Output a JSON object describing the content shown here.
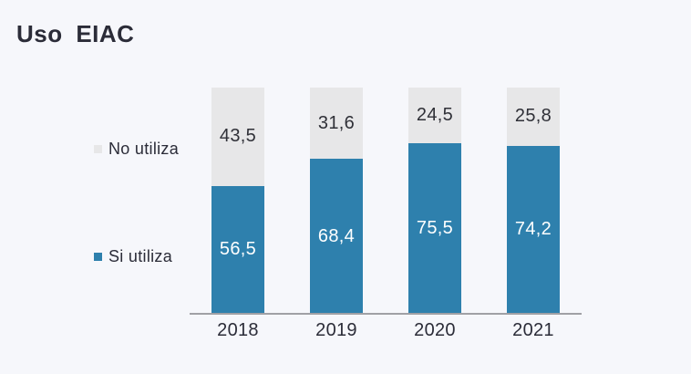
{
  "title": "Uso EIAC",
  "colors": {
    "background": "#f6f7fb",
    "blue": "#2e80ad",
    "gray": "#e7e7e8",
    "axis_line": "#a0a0a5",
    "text_dark": "#2b2c38",
    "label_on_gray": "#2f3037",
    "label_on_blue": "#ffffff"
  },
  "legend": {
    "items": [
      {
        "label": "No utiliza",
        "color": "#e7e7e8"
      },
      {
        "label": "Si utiliza",
        "color": "#2e80ad"
      }
    ]
  },
  "chart_data": {
    "type": "bar",
    "stacked": true,
    "title": "Uso EIAC",
    "categories": [
      "2018",
      "2019",
      "2020",
      "2021"
    ],
    "series": [
      {
        "name": "No utiliza",
        "key": "no-utiliza",
        "color": "#e7e7e8",
        "label_color": "#2f3037",
        "values": [
          43.5,
          31.6,
          24.5,
          25.8
        ],
        "labels": [
          "43,5",
          "31,6",
          "24,5",
          "25,8"
        ]
      },
      {
        "name": "Si utiliza",
        "key": "si-utiliza",
        "color": "#2e80ad",
        "label_color": "#ffffff",
        "values": [
          56.5,
          68.4,
          75.5,
          74.2
        ],
        "labels": [
          "56,5",
          "68,4",
          "75,5",
          "74,2"
        ]
      }
    ],
    "ylim": [
      0,
      100
    ],
    "value_format": "comma-decimal",
    "legend_position": "left",
    "grid": false,
    "x_axis_line": true
  }
}
